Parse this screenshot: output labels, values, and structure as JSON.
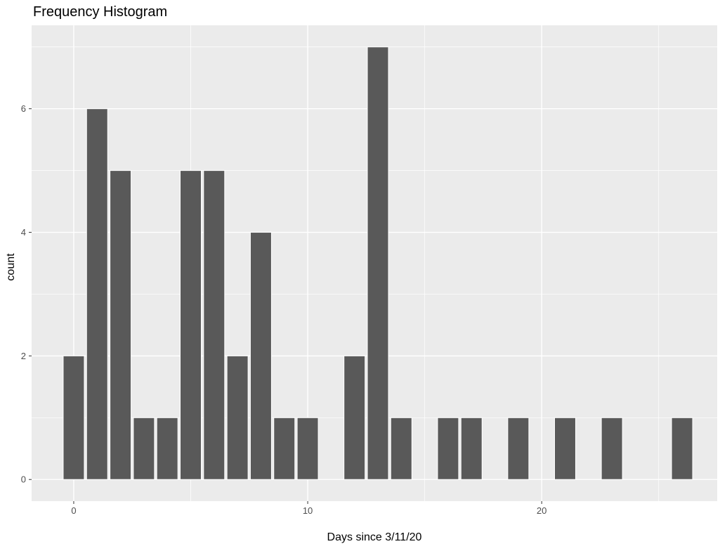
{
  "chart_data": {
    "type": "bar",
    "title": "Frequency Histogram",
    "xlabel": "Days since 3/11/20",
    "ylabel": "count",
    "x": [
      0,
      1,
      2,
      3,
      4,
      5,
      6,
      7,
      8,
      9,
      10,
      12,
      13,
      14,
      16,
      17,
      19,
      21,
      23,
      26
    ],
    "values": [
      2,
      6,
      5,
      1,
      1,
      5,
      5,
      2,
      4,
      1,
      1,
      2,
      7,
      1,
      1,
      1,
      1,
      1,
      1,
      1
    ],
    "xlim": [
      -1.8,
      27.5
    ],
    "ylim": [
      -0.35,
      7.35
    ],
    "x_ticks": [
      0,
      10,
      20
    ],
    "x_tick_labels": [
      "0",
      "10",
      "20"
    ],
    "y_ticks": [
      0,
      2,
      4,
      6
    ],
    "y_tick_labels": [
      "0",
      "2",
      "4",
      "6"
    ],
    "grid": true,
    "legend": "none",
    "colors": {
      "panel": "#ebebeb",
      "grid": "#ffffff",
      "bar": "#595959",
      "bar_outline": "#ffffff",
      "tick_text": "#4d4d4d",
      "tick_mark": "#333333",
      "text": "#000000"
    }
  }
}
